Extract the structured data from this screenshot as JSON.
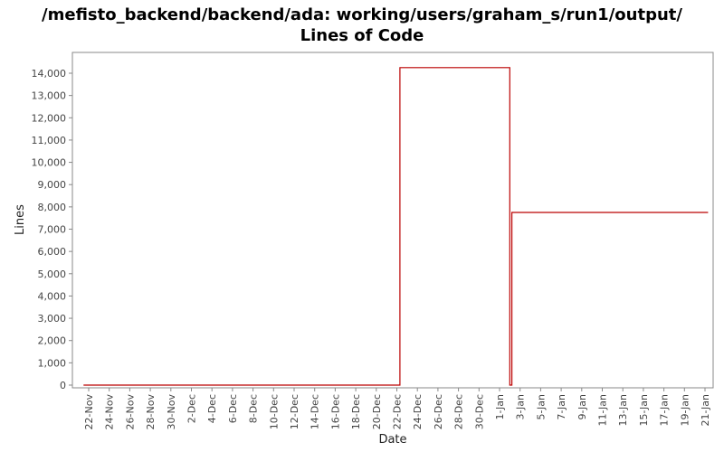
{
  "chart_data": {
    "type": "line",
    "title": "/mefisto_backend/backend/ada: working/users/graham_s/run1/output/",
    "subtitle": "Lines of Code",
    "xlabel": "Date",
    "ylabel": "Lines",
    "ylim": [
      0,
      14800
    ],
    "y_ticks": [
      "0",
      "1,000",
      "2,000",
      "3,000",
      "4,000",
      "5,000",
      "6,000",
      "7,000",
      "8,000",
      "9,000",
      "10,000",
      "11,000",
      "12,000",
      "13,000",
      "14,000"
    ],
    "x_ticks": [
      "22-Nov",
      "24-Nov",
      "26-Nov",
      "28-Nov",
      "30-Nov",
      "2-Dec",
      "4-Dec",
      "6-Dec",
      "8-Dec",
      "10-Dec",
      "12-Dec",
      "14-Dec",
      "16-Dec",
      "18-Dec",
      "20-Dec",
      "22-Dec",
      "24-Dec",
      "26-Dec",
      "28-Dec",
      "30-Dec",
      "1-Jan",
      "3-Jan",
      "5-Jan",
      "7-Jan",
      "9-Jan",
      "11-Jan",
      "13-Jan",
      "15-Jan",
      "17-Jan",
      "19-Jan",
      "21-Jan"
    ],
    "x_range": [
      "21-Nov",
      "22-Jan"
    ],
    "grid": false,
    "line_color": "#bb0000",
    "series": [
      {
        "points": [
          {
            "x": "21.5-Nov",
            "y": 0
          },
          {
            "x": "22.3-Dec",
            "y": 0
          },
          {
            "x": "22.3-Dec",
            "y": 14250
          },
          {
            "x": "2.0-Jan",
            "y": 14250
          },
          {
            "x": "2.0-Jan",
            "y": 0
          },
          {
            "x": "2.2-Jan",
            "y": 0
          },
          {
            "x": "2.2-Jan",
            "y": 7750
          },
          {
            "x": "21.3-Jan",
            "y": 7750
          }
        ]
      }
    ]
  }
}
